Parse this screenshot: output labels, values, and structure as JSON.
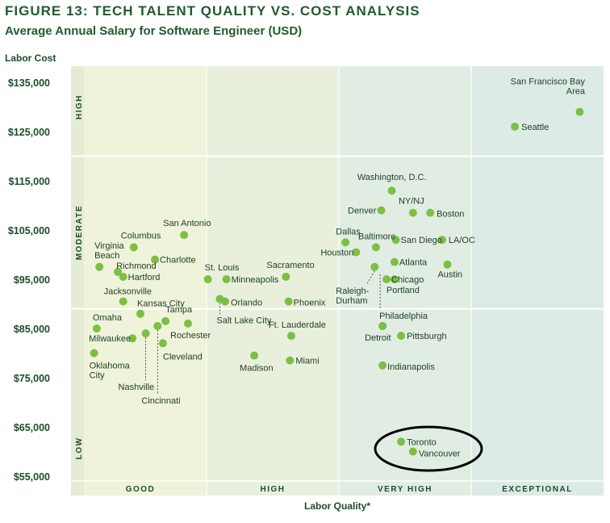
{
  "page": {
    "title": "FIGURE 13: TECH TALENT QUALITY VS. COST ANALYSIS",
    "subtitle": "Average Annual Salary for Software Engineer (USD)"
  },
  "chart_data": {
    "type": "scatter",
    "ylabel": "Labor Cost",
    "xlabel": "Labor Quality*",
    "ylim": [
      55000,
      135000
    ],
    "yticks": [
      "$135,000",
      "$125,000",
      "$115,000",
      "$105,000",
      "$95,000",
      "$85,000",
      "$75,000",
      "$65,000",
      "$55,000"
    ],
    "ytick_values": [
      135000,
      125000,
      115000,
      105000,
      95000,
      85000,
      75000,
      65000,
      55000
    ],
    "x_categories": [
      "GOOD",
      "HIGH",
      "VERY HIGH",
      "EXCEPTIONAL"
    ],
    "cost_bands": [
      {
        "label": "HIGH",
        "from": 120000,
        "to": 137000
      },
      {
        "label": "MODERATE",
        "from": 89000,
        "to": 120000
      },
      {
        "label": "LOW",
        "from": 53000,
        "to": 89000
      }
    ],
    "point_color": "#7dbf43",
    "highlight": {
      "cities": [
        "Toronto",
        "Vancouver"
      ],
      "shape": "ellipse",
      "color": "#000000"
    },
    "points": [
      {
        "city": "San Francisco Bay Area",
        "label_lines": [
          "San Francisco Bay",
          "Area"
        ],
        "x": 3.82,
        "y": 129000
      },
      {
        "city": "Seattle",
        "x": 3.33,
        "y": 126000
      },
      {
        "city": "Washington, D.C.",
        "x": 2.4,
        "y": 113000
      },
      {
        "city": "Denver",
        "x": 2.32,
        "y": 109000
      },
      {
        "city": "NY/NJ",
        "x": 2.56,
        "y": 108500
      },
      {
        "city": "Boston",
        "x": 2.69,
        "y": 108500
      },
      {
        "city": "Dallas",
        "x": 2.05,
        "y": 102500
      },
      {
        "city": "Baltimore",
        "x": 2.28,
        "y": 101500
      },
      {
        "city": "San Diego",
        "x": 2.43,
        "y": 103000
      },
      {
        "city": "LA/OC",
        "x": 2.78,
        "y": 103000
      },
      {
        "city": "Houston",
        "x": 2.13,
        "y": 100500
      },
      {
        "city": "Atlanta",
        "x": 2.42,
        "y": 98500
      },
      {
        "city": "Austin",
        "x": 2.82,
        "y": 98000
      },
      {
        "city": "Raleigh-Durham",
        "label_lines": [
          "Raleigh-",
          "Durham"
        ],
        "x": 2.27,
        "y": 97500
      },
      {
        "city": "Chicago",
        "x": 2.36,
        "y": 95000
      },
      {
        "city": "Portland",
        "x": 2.42,
        "y": 95000
      },
      {
        "city": "Philadelphia",
        "x": 2.33,
        "y": 85500
      },
      {
        "city": "Detroit",
        "x": 2.33,
        "y": 85500
      },
      {
        "city": "Pittsburgh",
        "x": 2.47,
        "y": 83500
      },
      {
        "city": "Indianapolis",
        "x": 2.33,
        "y": 77500
      },
      {
        "city": "Toronto",
        "x": 2.47,
        "y": 62000
      },
      {
        "city": "Vancouver",
        "x": 2.56,
        "y": 60000
      },
      {
        "city": "San Antonio",
        "x": 0.83,
        "y": 104000
      },
      {
        "city": "Columbus",
        "x": 0.45,
        "y": 101500
      },
      {
        "city": "Virginia Beach",
        "label_lines": [
          "Virginia",
          "Beach"
        ],
        "x": 0.19,
        "y": 97500
      },
      {
        "city": "Richmond",
        "x": 0.33,
        "y": 96500
      },
      {
        "city": "Charlotte",
        "x": 0.61,
        "y": 99000
      },
      {
        "city": "Hartford",
        "x": 0.37,
        "y": 95500
      },
      {
        "city": "Jacksonville",
        "x": 0.37,
        "y": 90500
      },
      {
        "city": "Kansas City",
        "x": 0.5,
        "y": 88000
      },
      {
        "city": "Tampa",
        "x": 0.69,
        "y": 86500
      },
      {
        "city": "Omaha",
        "x": 0.17,
        "y": 85000
      },
      {
        "city": "Rochester",
        "x": 0.86,
        "y": 86000
      },
      {
        "city": "Milwaukee",
        "x": 0.44,
        "y": 83000
      },
      {
        "city": "Nashville",
        "x": 0.54,
        "y": 84000
      },
      {
        "city": "Cincinnati",
        "x": 0.63,
        "y": 85500
      },
      {
        "city": "Cleveland",
        "x": 0.67,
        "y": 82000
      },
      {
        "city": "Oklahoma City",
        "label_lines": [
          "Oklahoma",
          "City"
        ],
        "x": 0.15,
        "y": 80000
      },
      {
        "city": "St. Louis",
        "x": 1.01,
        "y": 95000
      },
      {
        "city": "Minneapolis",
        "x": 1.15,
        "y": 95000
      },
      {
        "city": "Sacramento",
        "x": 1.6,
        "y": 95500
      },
      {
        "city": "Salt Lake City",
        "x": 1.1,
        "y": 91000
      },
      {
        "city": "Orlando",
        "x": 1.14,
        "y": 90500
      },
      {
        "city": "Phoenix",
        "x": 1.62,
        "y": 90500
      },
      {
        "city": "Ft. Lauderdale",
        "x": 1.64,
        "y": 83500
      },
      {
        "city": "Madison",
        "x": 1.36,
        "y": 79500
      },
      {
        "city": "Miami",
        "x": 1.63,
        "y": 78500
      }
    ]
  }
}
